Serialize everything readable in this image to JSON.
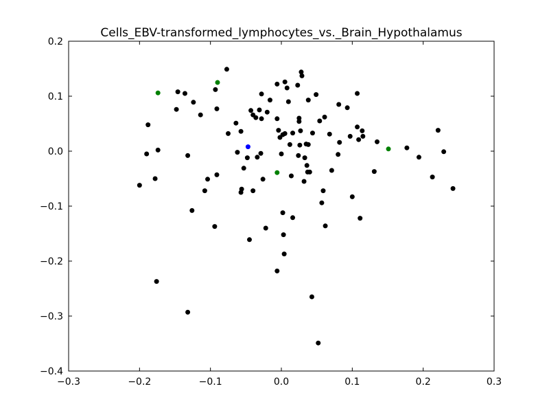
{
  "chart_data": {
    "type": "scatter",
    "title": "Cells_EBV-transformed_lymphocytes_vs._Brain_Hypothalamus",
    "xlabel": "",
    "ylabel": "",
    "xlim": [
      -0.3,
      0.3
    ],
    "ylim": [
      -0.4,
      0.2
    ],
    "grid": false,
    "x_ticks": [
      "−0.3",
      "−0.2",
      "−0.1",
      "0.0",
      "0.1",
      "0.2",
      "0.3"
    ],
    "y_ticks": [
      "−0.4",
      "−0.3",
      "−0.2",
      "−0.1",
      "0.0",
      "0.1",
      "0.2"
    ],
    "colors": {
      "default": "#000000",
      "green": "#008000",
      "blue": "#0000ff"
    },
    "series": [
      {
        "color": "#000000",
        "points": [
          [
            -0.2,
            -0.062
          ],
          [
            -0.19,
            -0.005
          ],
          [
            -0.188,
            0.048
          ],
          [
            -0.178,
            -0.05
          ],
          [
            -0.176,
            -0.237
          ],
          [
            -0.174,
            0.002
          ],
          [
            -0.148,
            0.076
          ],
          [
            -0.146,
            0.108
          ],
          [
            -0.136,
            0.105
          ],
          [
            -0.132,
            -0.008
          ],
          [
            -0.132,
            -0.293
          ],
          [
            -0.126,
            -0.108
          ],
          [
            -0.124,
            0.089
          ],
          [
            -0.114,
            0.066
          ],
          [
            -0.108,
            -0.072
          ],
          [
            -0.104,
            -0.051
          ],
          [
            -0.094,
            -0.137
          ],
          [
            -0.093,
            0.112
          ],
          [
            -0.091,
            -0.043
          ],
          [
            -0.091,
            0.077
          ],
          [
            -0.077,
            0.149
          ],
          [
            -0.075,
            0.032
          ],
          [
            -0.064,
            0.051
          ],
          [
            -0.062,
            -0.002
          ],
          [
            -0.057,
            0.036
          ],
          [
            -0.057,
            -0.075
          ],
          [
            -0.056,
            -0.069
          ],
          [
            -0.053,
            -0.031
          ],
          [
            -0.048,
            -0.012
          ],
          [
            -0.043,
            0.074
          ],
          [
            -0.045,
            -0.161
          ],
          [
            -0.04,
            0.066
          ],
          [
            -0.04,
            -0.072
          ],
          [
            -0.036,
            0.061
          ],
          [
            -0.034,
            -0.011
          ],
          [
            -0.031,
            0.075
          ],
          [
            -0.029,
            -0.004
          ],
          [
            -0.028,
            0.059
          ],
          [
            -0.028,
            0.104
          ],
          [
            -0.026,
            -0.051
          ],
          [
            -0.022,
            -0.14
          ],
          [
            -0.02,
            0.071
          ],
          [
            -0.016,
            0.093
          ],
          [
            -0.006,
            0.122
          ],
          [
            -0.006,
            0.059
          ],
          [
            -0.006,
            -0.218
          ],
          [
            -0.004,
            0.038
          ],
          [
            -0.002,
            0.025
          ],
          [
            0.0,
            -0.005
          ],
          [
            0.002,
            0.03
          ],
          [
            0.002,
            -0.112
          ],
          [
            0.003,
            -0.152
          ],
          [
            0.004,
            -0.187
          ],
          [
            0.005,
            0.032
          ],
          [
            0.005,
            0.126
          ],
          [
            0.008,
            0.115
          ],
          [
            0.01,
            0.09
          ],
          [
            0.012,
            0.012
          ],
          [
            0.014,
            -0.045
          ],
          [
            0.016,
            -0.121
          ],
          [
            0.016,
            0.033
          ],
          [
            0.023,
            0.12
          ],
          [
            0.024,
            -0.008
          ],
          [
            0.025,
            0.06
          ],
          [
            0.025,
            0.054
          ],
          [
            0.026,
            0.011
          ],
          [
            0.027,
            0.037
          ],
          [
            0.028,
            0.144
          ],
          [
            0.029,
            0.137
          ],
          [
            0.032,
            -0.055
          ],
          [
            0.033,
            -0.012
          ],
          [
            0.035,
            0.013
          ],
          [
            0.036,
            -0.026
          ],
          [
            0.038,
            0.012
          ],
          [
            0.037,
            -0.038
          ],
          [
            0.038,
            0.093
          ],
          [
            0.04,
            -0.038
          ],
          [
            0.043,
            -0.265
          ],
          [
            0.044,
            0.033
          ],
          [
            0.049,
            0.103
          ],
          [
            0.052,
            -0.349
          ],
          [
            0.054,
            0.055
          ],
          [
            0.057,
            -0.094
          ],
          [
            0.059,
            -0.072
          ],
          [
            0.061,
            0.062
          ],
          [
            0.062,
            -0.136
          ],
          [
            0.068,
            0.031
          ],
          [
            0.071,
            -0.035
          ],
          [
            0.08,
            -0.006
          ],
          [
            0.081,
            0.085
          ],
          [
            0.082,
            0.016
          ],
          [
            0.093,
            0.079
          ],
          [
            0.097,
            0.027
          ],
          [
            0.1,
            -0.083
          ],
          [
            0.107,
            0.105
          ],
          [
            0.107,
            0.044
          ],
          [
            0.109,
            0.021
          ],
          [
            0.111,
            -0.122
          ],
          [
            0.114,
            0.037
          ],
          [
            0.115,
            0.027
          ],
          [
            0.131,
            -0.037
          ],
          [
            0.135,
            0.017
          ],
          [
            0.177,
            0.006
          ],
          [
            0.194,
            -0.011
          ],
          [
            0.213,
            -0.047
          ],
          [
            0.221,
            0.038
          ],
          [
            0.229,
            -0.001
          ],
          [
            0.242,
            -0.068
          ]
        ]
      },
      {
        "color": "#008000",
        "points": [
          [
            -0.174,
            0.106
          ],
          [
            -0.09,
            0.125
          ],
          [
            -0.006,
            -0.039
          ],
          [
            0.151,
            0.004
          ]
        ]
      },
      {
        "color": "#0000ff",
        "points": [
          [
            -0.047,
            0.008
          ]
        ]
      }
    ]
  }
}
